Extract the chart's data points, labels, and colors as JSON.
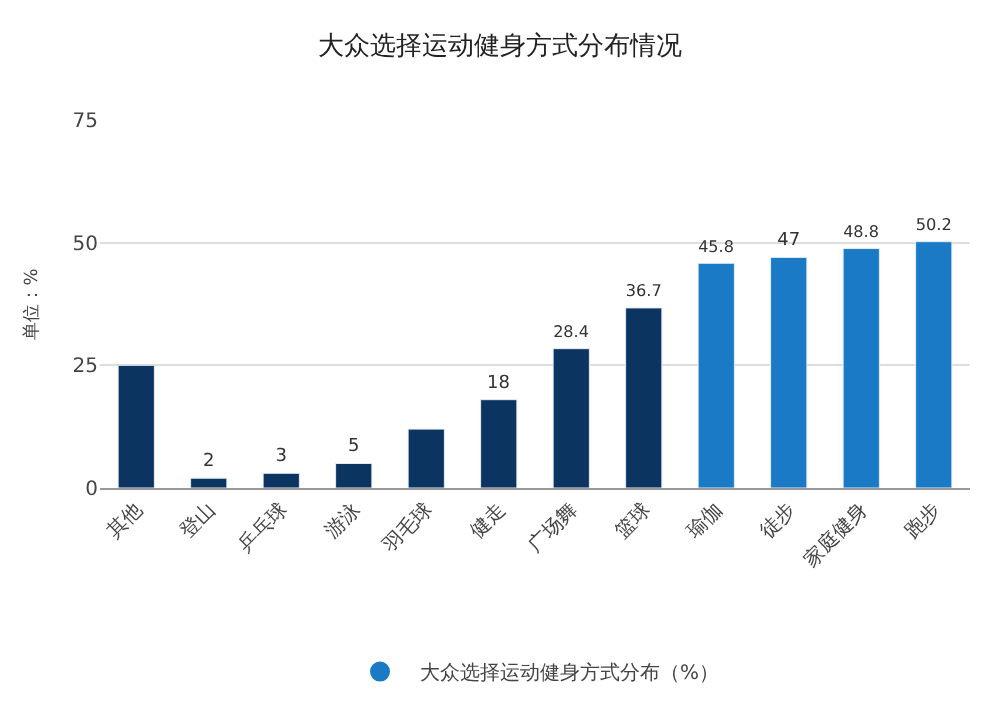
{
  "chart_data": {
    "type": "bar",
    "title": "大众选择运动健身方式分布情况",
    "ylabel": "单位：%",
    "categories": [
      "其他",
      "登山",
      "乒乓球",
      "游泳",
      "羽毛球",
      "健走",
      "广场舞",
      "篮球",
      "瑜伽",
      "徒步",
      "家庭健身",
      "跑步"
    ],
    "series": [
      {
        "name": "大众选择运动健身方式分布（%）",
        "color": "#1a7ac6",
        "colors": [
          "#0b3560",
          "#0b3560",
          "#0b3560",
          "#0b3560",
          "#0b3560",
          "#0b3560",
          "#0b3560",
          "#0b3560",
          "#1a7ac6",
          "#1a7ac6",
          "#1a7ac6",
          "#1a7ac6"
        ],
        "values": [
          25,
          2,
          3,
          5,
          12,
          18,
          28.4,
          36.7,
          45.8,
          47,
          48.8,
          50.2
        ],
        "value_labels": [
          null,
          "2",
          "3",
          "5",
          null,
          "18",
          "28.4",
          "36.7",
          "45.8",
          "47",
          "48.8",
          "50.2"
        ]
      }
    ],
    "ylim": [
      0,
      75
    ],
    "yticks": [
      0,
      25,
      50,
      75
    ],
    "grid": "y",
    "legend": "bottom"
  }
}
